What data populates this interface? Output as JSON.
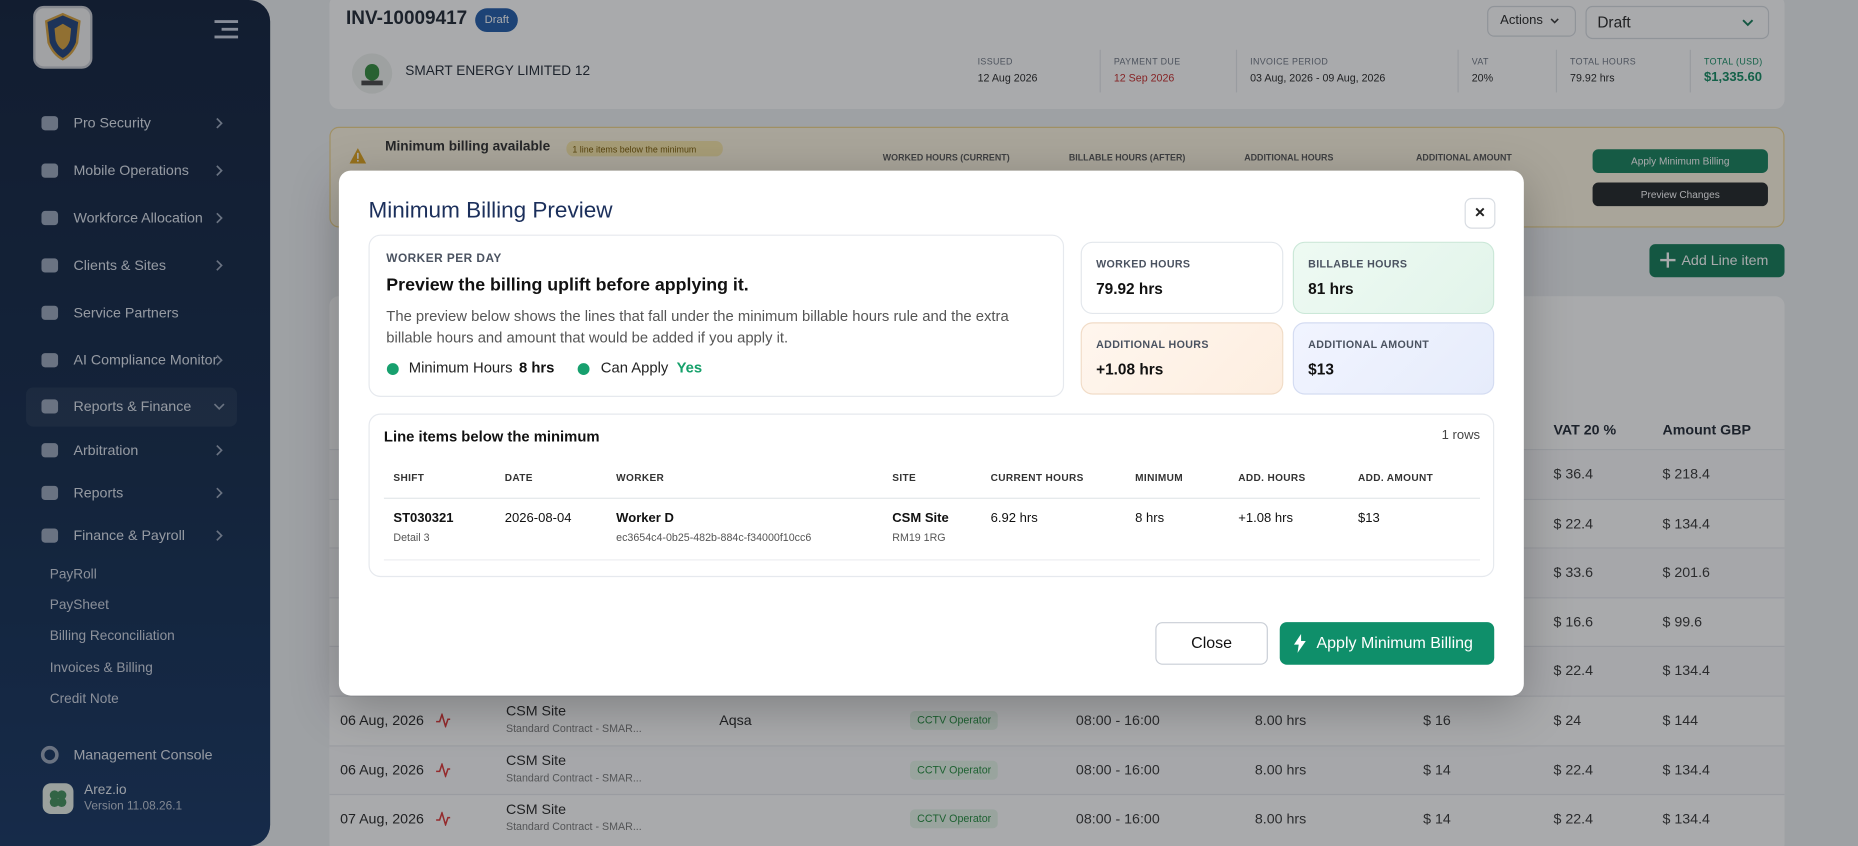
{
  "sidebar": {
    "nav": [
      "Pro Security",
      "Mobile Operations",
      "Workforce Allocation",
      "Clients & Sites",
      "Service Partners",
      "AI Compliance Monitor",
      "Reports & Finance",
      "Arbitration",
      "Reports",
      "Finance & Payroll"
    ],
    "subnav": [
      "PayRoll",
      "PaySheet",
      "Billing Reconciliation",
      "Invoices & Billing",
      "Credit Note"
    ],
    "console": "Management Console",
    "org": "Arez.io",
    "version": "Version 11.08.26.1"
  },
  "header": {
    "invoice_number": "INV-10009417",
    "status": "Draft",
    "actions": "Actions",
    "status_select": "Draft",
    "client": "SMART ENERGY LIMITED 12",
    "meta": [
      {
        "label": "ISSUED",
        "value": "12 Aug 2026"
      },
      {
        "label": "PAYMENT DUE",
        "value": "12 Sep 2026"
      },
      {
        "label": "INVOICE PERIOD",
        "value": "03 Aug, 2026 - 09 Aug, 2026"
      },
      {
        "label": "VAT",
        "value": "20%"
      },
      {
        "label": "TOTAL HOURS",
        "value": "79.92 hrs"
      },
      {
        "label": "TOTAL (USD)",
        "value": "$1,335.60"
      }
    ]
  },
  "banner": {
    "title": "Minimum billing available",
    "badge": "1 line items below the minimum",
    "columns": [
      "WORKED HOURS (CURRENT)",
      "BILLABLE HOURS (AFTER)",
      "ADDITIONAL HOURS",
      "ADDITIONAL AMOUNT"
    ],
    "apply": "Apply Minimum Billing",
    "preview": "Preview Changes"
  },
  "add_line": "Add Line item",
  "background_table": {
    "columns": [
      "VAT 20 %",
      "Amount GBP"
    ],
    "rows": [
      {
        "vat": "$ 36.4",
        "amount": "$ 218.4"
      },
      {
        "vat": "$ 22.4",
        "amount": "$ 134.4"
      },
      {
        "vat": "$ 33.6",
        "amount": "$ 201.6"
      },
      {
        "vat": "$ 16.6",
        "amount": "$ 99.6"
      },
      {
        "vat": "$ 22.4",
        "amount": "$ 134.4"
      },
      {
        "date": "06 Aug, 2026",
        "site": "CSM Site",
        "contract": "Standard Contract - SMAR...",
        "worker": "Aqsa",
        "role": "CCTV Operator",
        "time": "08:00 - 16:00",
        "hours": "8.00 hrs",
        "rate": "$ 16",
        "vat": "$ 24",
        "amount": "$ 144"
      },
      {
        "date": "06 Aug, 2026",
        "site": "CSM Site",
        "contract": "Standard Contract - SMAR...",
        "role": "CCTV Operator",
        "time": "08:00 - 16:00",
        "hours": "8.00 hrs",
        "rate": "$ 14",
        "vat": "$ 22.4",
        "amount": "$ 134.4"
      },
      {
        "date": "07 Aug, 2026",
        "site": "CSM Site",
        "contract": "Standard Contract - SMAR...",
        "role": "CCTV Operator",
        "time": "08:00 - 16:00",
        "hours": "8.00 hrs",
        "rate": "$ 14",
        "vat": "$ 22.4",
        "amount": "$ 134.4"
      }
    ]
  },
  "modal": {
    "title": "Minimum Billing Preview",
    "close_icon": "×",
    "eyebrow": "WORKER PER DAY",
    "heading": "Preview the billing uplift before applying it.",
    "description": "The preview below shows the lines that fall under the minimum billable hours rule and the extra billable hours and amount that would be added if you apply it.",
    "flags": [
      {
        "label": "Minimum Hours",
        "value": "8 hrs"
      },
      {
        "label": "Can Apply",
        "value": "Yes"
      }
    ],
    "stats": [
      {
        "label": "WORKED HOURS",
        "value": "79.92 hrs"
      },
      {
        "label": "BILLABLE HOURS",
        "value": "81 hrs"
      },
      {
        "label": "ADDITIONAL HOURS",
        "value": "+1.08 hrs"
      },
      {
        "label": "ADDITIONAL AMOUNT",
        "value": "$13"
      }
    ],
    "table": {
      "title": "Line items below the minimum",
      "count": "1 rows",
      "columns": [
        "SHIFT",
        "DATE",
        "WORKER",
        "SITE",
        "CURRENT HOURS",
        "MINIMUM",
        "ADD. HOURS",
        "ADD. AMOUNT"
      ],
      "rows": [
        {
          "shift": "ST030321",
          "shift_detail": "Detail 3",
          "date": "2026-08-04",
          "worker": "Worker D",
          "worker_id": "ec3654c4-0b25-482b-884c-f34000f10cc6",
          "site": "CSM Site",
          "postcode": "RM19 1RG",
          "current_hours": "6.92 hrs",
          "minimum": "8 hrs",
          "add_hours": "+1.08 hrs",
          "add_amount": "$13"
        }
      ]
    },
    "close": "Close",
    "apply": "Apply Minimum Billing"
  }
}
